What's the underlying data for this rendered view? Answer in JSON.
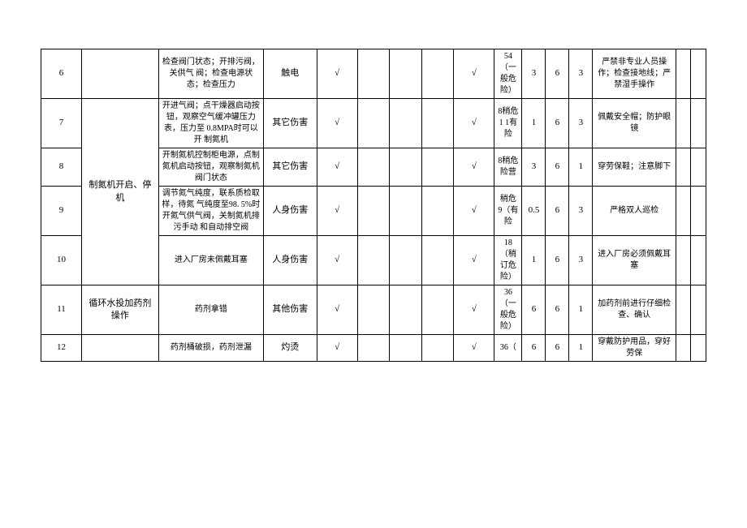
{
  "rows": [
    {
      "idx": "6",
      "process": "",
      "desc": "检查阀门状态；开排污阀，关供气 阀；检查电源状 态；检查压力",
      "type": "触电",
      "chk1": "√",
      "chk5": "√",
      "risk": "54（一般危险）",
      "n1": "3",
      "n2": "6",
      "n3": "3",
      "measure": "严禁非专业人员操作；检查接地线；严禁湿手操作"
    },
    {
      "idx": "7",
      "process": "制氮机开启、停机",
      "process_rowspan": 4,
      "desc": "开进气阀；点干燥器启动按钮，观察空气缓冲罐压力表，压力至 0.8MPA时可以开 制氮机",
      "type": "其它伤害",
      "chk1": "√",
      "chk5": "√",
      "risk": "8稍危 1 1有险",
      "n1": "1",
      "n2": "6",
      "n3": "3",
      "measure": "佩戴安全帽；防护眼镜"
    },
    {
      "idx": "8",
      "desc": "开制氮机控制柜电源，点制氮机启动按钮，观察制氮机 阀门状态",
      "type": "其它伤害",
      "chk1": "√",
      "chk5": "√",
      "risk": "8稍危 险营",
      "n1": "3",
      "n2": "6",
      "n3": "1",
      "measure": "穿劳保鞋；注意脚下"
    },
    {
      "idx": "9",
      "desc": "调节氮气纯度，联系质检取样，待氮 气纯度至98. 5%时开氮气供气阀，关制氮机排污手动 和自动排空阀",
      "type": "人身伤害",
      "chk1": "√",
      "chk5": "√",
      "risk": "稍危 9（有险",
      "n1": "0.5",
      "n2": "6",
      "n3": "3",
      "measure": "严格双人巡检"
    },
    {
      "idx": "10",
      "process": "",
      "desc": "进入厂房未佩戴耳塞",
      "type": "人身伤害",
      "chk1": "√",
      "chk5": "√",
      "risk": "18（稍订危险）",
      "n1": "1",
      "n2": "6",
      "n3": "3",
      "measure": "进入厂房必须佩戴耳塞"
    },
    {
      "idx": "11",
      "process": "循环水投加药剂操作",
      "desc": "药剂拿错",
      "type": "其他伤害",
      "chk1": "√",
      "chk5": "√",
      "risk": "36（一般危险）",
      "n1": "6",
      "n2": "6",
      "n3": "1",
      "measure": "加药剂前进行仔细检查、确认"
    },
    {
      "idx": "12",
      "process": "",
      "desc": "药剂桶破损，药剂泄漏",
      "type": "灼烫",
      "chk1": "√",
      "chk5": "√",
      "risk": "36（",
      "n1": "6",
      "n2": "6",
      "n3": "1",
      "measure": "穿戴防护用品，穿好劳保"
    }
  ]
}
